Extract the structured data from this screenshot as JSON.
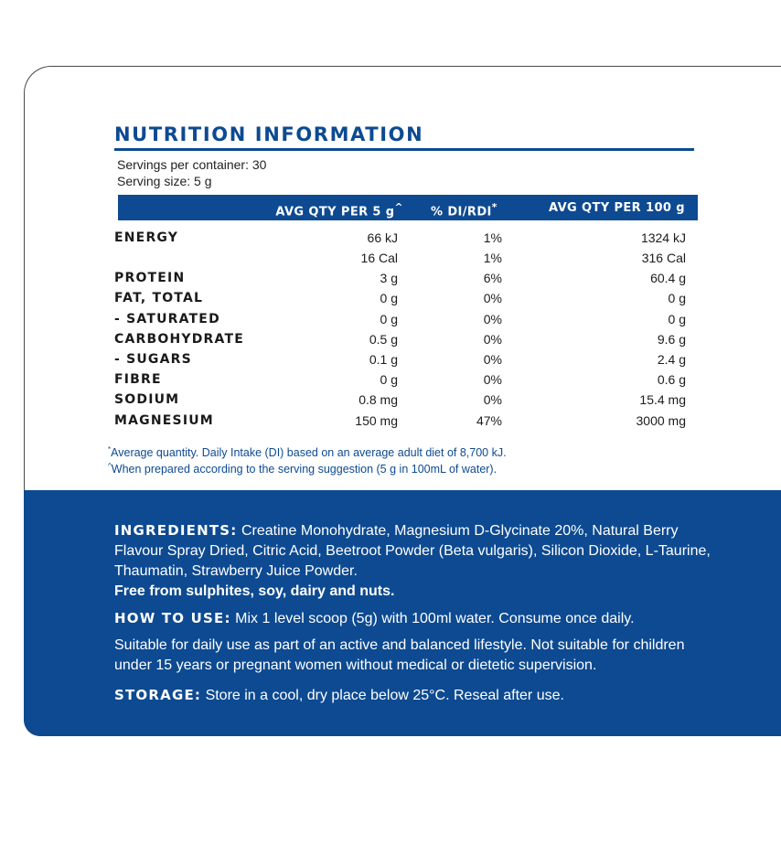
{
  "title": "NUTRITION INFORMATION",
  "servings_per_container": "Servings per container: 30",
  "serving_size": "Serving size: 5 g",
  "headers": {
    "col1": "AVG QTY PER 5 g",
    "col1_mark": "^",
    "col2": "% DI/RDI",
    "col2_mark": "*",
    "col3": "AVG QTY PER 100 g"
  },
  "rows": [
    {
      "label": "ENERGY",
      "per_serving": "66 kJ",
      "di": "1%",
      "per_100g": "1324 kJ"
    },
    {
      "label": "",
      "per_serving": "16 Cal",
      "di": "1%",
      "per_100g": "316 Cal"
    },
    {
      "label": "PROTEIN",
      "per_serving": "3 g",
      "di": "6%",
      "per_100g": "60.4 g"
    },
    {
      "label": "FAT, TOTAL",
      "per_serving": "0 g",
      "di": "0%",
      "per_100g": "0 g"
    },
    {
      "label": "- SATURATED",
      "per_serving": "0 g",
      "di": "0%",
      "per_100g": "0 g"
    },
    {
      "label": "CARBOHYDRATE",
      "per_serving": "0.5 g",
      "di": "0%",
      "per_100g": "9.6 g"
    },
    {
      "label": "- SUGARS",
      "per_serving": "0.1 g",
      "di": "0%",
      "per_100g": "2.4 g"
    },
    {
      "label": "FIBRE",
      "per_serving": "0 g",
      "di": "0%",
      "per_100g": "0.6 g"
    },
    {
      "label": "SODIUM",
      "per_serving": "0.8 mg",
      "di": "0%",
      "per_100g": "15.4 mg"
    },
    {
      "label": "MAGNESIUM",
      "per_serving": "150 mg",
      "di": "47%",
      "per_100g": "3000 mg"
    }
  ],
  "footnotes": {
    "f1_mark": "*",
    "f1": "Average quantity. Daily Intake (DI) based on an average adult diet of 8,700 kJ.",
    "f2_mark": "^",
    "f2": "When prepared according to the serving suggestion (5 g in 100mL of water)."
  },
  "ingredients": {
    "label": "INGREDIENTS:",
    "text": "Creatine Monohydrate, Magnesium D-Glycinate 20%, Natural Berry Flavour Spray Dried, Citric Acid, Beetroot Powder (Beta vulgaris), Silicon Dioxide, L-Taurine, Thaumatin, Strawberry Juice Powder.",
    "free_from": "Free from sulphites, soy, dairy and nuts."
  },
  "how_to_use": {
    "label": "HOW TO USE:",
    "text": "Mix 1 level scoop (5g) with 100ml water. Consume once daily."
  },
  "suitability": "Suitable for daily use as part of an active and balanced lifestyle. Not suitable for children under 15 years or pregnant women without medical or dietetic supervision.",
  "storage": {
    "label": "STORAGE:",
    "text": "Store in a cool, dry place below 25°C. Reseal after use."
  },
  "colors": {
    "brand_blue": "#0d4a91"
  }
}
